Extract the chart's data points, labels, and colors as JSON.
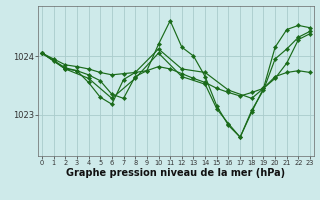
{
  "bg_color": "#ceeaea",
  "grid_color": "#aacccc",
  "line_color": "#1a6b1a",
  "marker_color": "#1a6b1a",
  "xlabel": "Graphe pression niveau de la mer (hPa)",
  "xlabel_fontsize": 7.0,
  "xticks": [
    0,
    1,
    2,
    3,
    4,
    5,
    6,
    7,
    8,
    9,
    10,
    11,
    12,
    13,
    14,
    15,
    16,
    17,
    18,
    19,
    20,
    21,
    22,
    23
  ],
  "ytick_positions": [
    1023,
    1024
  ],
  "ytick_labels": [
    "1023",
    "1024"
  ],
  "ylim": [
    1022.3,
    1024.85
  ],
  "xlim": [
    -0.3,
    23.3
  ],
  "lines": [
    {
      "x": [
        0,
        1,
        2,
        3,
        4,
        5,
        6,
        7,
        8,
        9,
        10,
        11,
        12,
        13,
        14,
        15,
        16,
        17,
        18,
        19,
        20,
        21,
        22,
        23
      ],
      "y": [
        1024.05,
        1023.95,
        1023.85,
        1023.82,
        1023.78,
        1023.72,
        1023.68,
        1023.7,
        1023.72,
        1023.75,
        1023.82,
        1023.78,
        1023.7,
        1023.62,
        1023.55,
        1023.45,
        1023.38,
        1023.32,
        1023.38,
        1023.45,
        1023.65,
        1023.72,
        1023.75,
        1023.72
      ]
    },
    {
      "x": [
        0,
        1,
        2,
        3,
        4,
        5,
        6,
        7,
        8,
        9,
        10,
        11,
        12,
        13,
        14,
        15,
        16,
        17,
        18,
        19,
        20,
        21,
        22,
        23
      ],
      "y": [
        1024.05,
        1023.92,
        1023.78,
        1023.75,
        1023.68,
        1023.58,
        1023.35,
        1023.28,
        1023.65,
        1023.75,
        1024.2,
        1024.6,
        1024.15,
        1024.0,
        1023.65,
        1023.15,
        1022.82,
        1022.62,
        1023.05,
        1023.45,
        1024.15,
        1024.45,
        1024.52,
        1024.48
      ]
    },
    {
      "x": [
        0,
        2,
        3,
        4,
        5,
        6,
        7,
        8,
        10,
        12,
        14,
        16,
        18,
        20,
        21,
        22,
        23
      ],
      "y": [
        1024.05,
        1023.8,
        1023.75,
        1023.55,
        1023.3,
        1023.18,
        1023.6,
        1023.72,
        1024.12,
        1023.78,
        1023.72,
        1023.42,
        1023.28,
        1023.62,
        1023.88,
        1024.28,
        1024.38
      ]
    },
    {
      "x": [
        0,
        2,
        4,
        6,
        8,
        10,
        12,
        14,
        15,
        16,
        17,
        18,
        19,
        20,
        21,
        22,
        23
      ],
      "y": [
        1024.05,
        1023.78,
        1023.62,
        1023.28,
        1023.62,
        1024.05,
        1023.65,
        1023.52,
        1023.1,
        1022.85,
        1022.62,
        1023.08,
        1023.42,
        1023.95,
        1024.12,
        1024.32,
        1024.42
      ]
    }
  ]
}
